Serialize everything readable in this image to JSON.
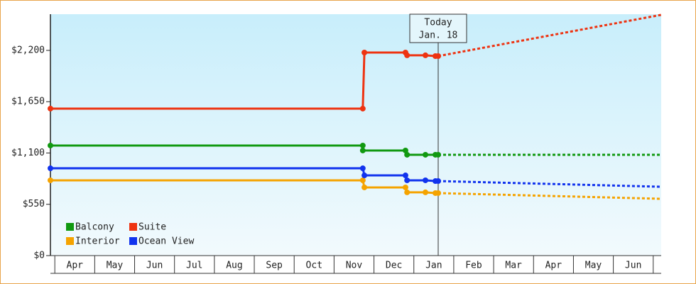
{
  "chart_data": {
    "type": "line",
    "categories": [
      "Apr",
      "May",
      "Jun",
      "Jul",
      "Aug",
      "Sep",
      "Oct",
      "Nov",
      "Dec",
      "Jan",
      "Feb",
      "Mar",
      "Apr",
      "May",
      "Jun"
    ],
    "xlim": [
      -0.11,
      15.2
    ],
    "ylim": [
      0,
      2588
    ],
    "yticks": [
      {
        "value": 0,
        "label": "$0"
      },
      {
        "value": 550,
        "label": "$550"
      },
      {
        "value": 1100,
        "label": "$1,100"
      },
      {
        "value": 1650,
        "label": "$1,650"
      },
      {
        "value": 2200,
        "label": "$2,200"
      }
    ],
    "grid": false,
    "legend": "lower left",
    "today": {
      "x": 9.61,
      "label": [
        "Today",
        "Jan. 18"
      ]
    },
    "series": [
      {
        "name": "Balcony",
        "color": "#119911",
        "x": [
          -0.11,
          7.72,
          7.72,
          8.79,
          8.83,
          9.29,
          9.54,
          9.61
        ],
        "values": [
          1180,
          1180,
          1127,
          1127,
          1081,
          1081,
          1081,
          1081
        ],
        "forecast_x": [
          9.61,
          15.2
        ],
        "forecast_values": [
          1081,
          1081
        ]
      },
      {
        "name": "Suite",
        "color": "#ee3311",
        "x": [
          -0.11,
          7.72,
          7.76,
          8.79,
          8.83,
          9.29,
          9.54,
          9.61
        ],
        "values": [
          1576,
          1576,
          2177,
          2177,
          2147,
          2147,
          2139,
          2139
        ],
        "forecast_x": [
          9.61,
          15.2
        ],
        "forecast_values": [
          2139,
          2581
        ]
      },
      {
        "name": "Interior",
        "color": "#f5a300",
        "x": [
          -0.11,
          7.72,
          7.76,
          8.79,
          8.83,
          9.29,
          9.54,
          9.61
        ],
        "values": [
          807,
          807,
          731,
          731,
          678,
          678,
          670,
          670
        ],
        "forecast_x": [
          9.61,
          15.2
        ],
        "forecast_values": [
          670,
          609
        ]
      },
      {
        "name": "Ocean View",
        "color": "#1133ee",
        "x": [
          -0.11,
          7.72,
          7.76,
          8.79,
          8.83,
          9.29,
          9.54,
          9.61
        ],
        "values": [
          936,
          936,
          860,
          860,
          807,
          807,
          799,
          799
        ],
        "forecast_x": [
          9.61,
          15.2
        ],
        "forecast_values": [
          799,
          738
        ]
      }
    ]
  }
}
